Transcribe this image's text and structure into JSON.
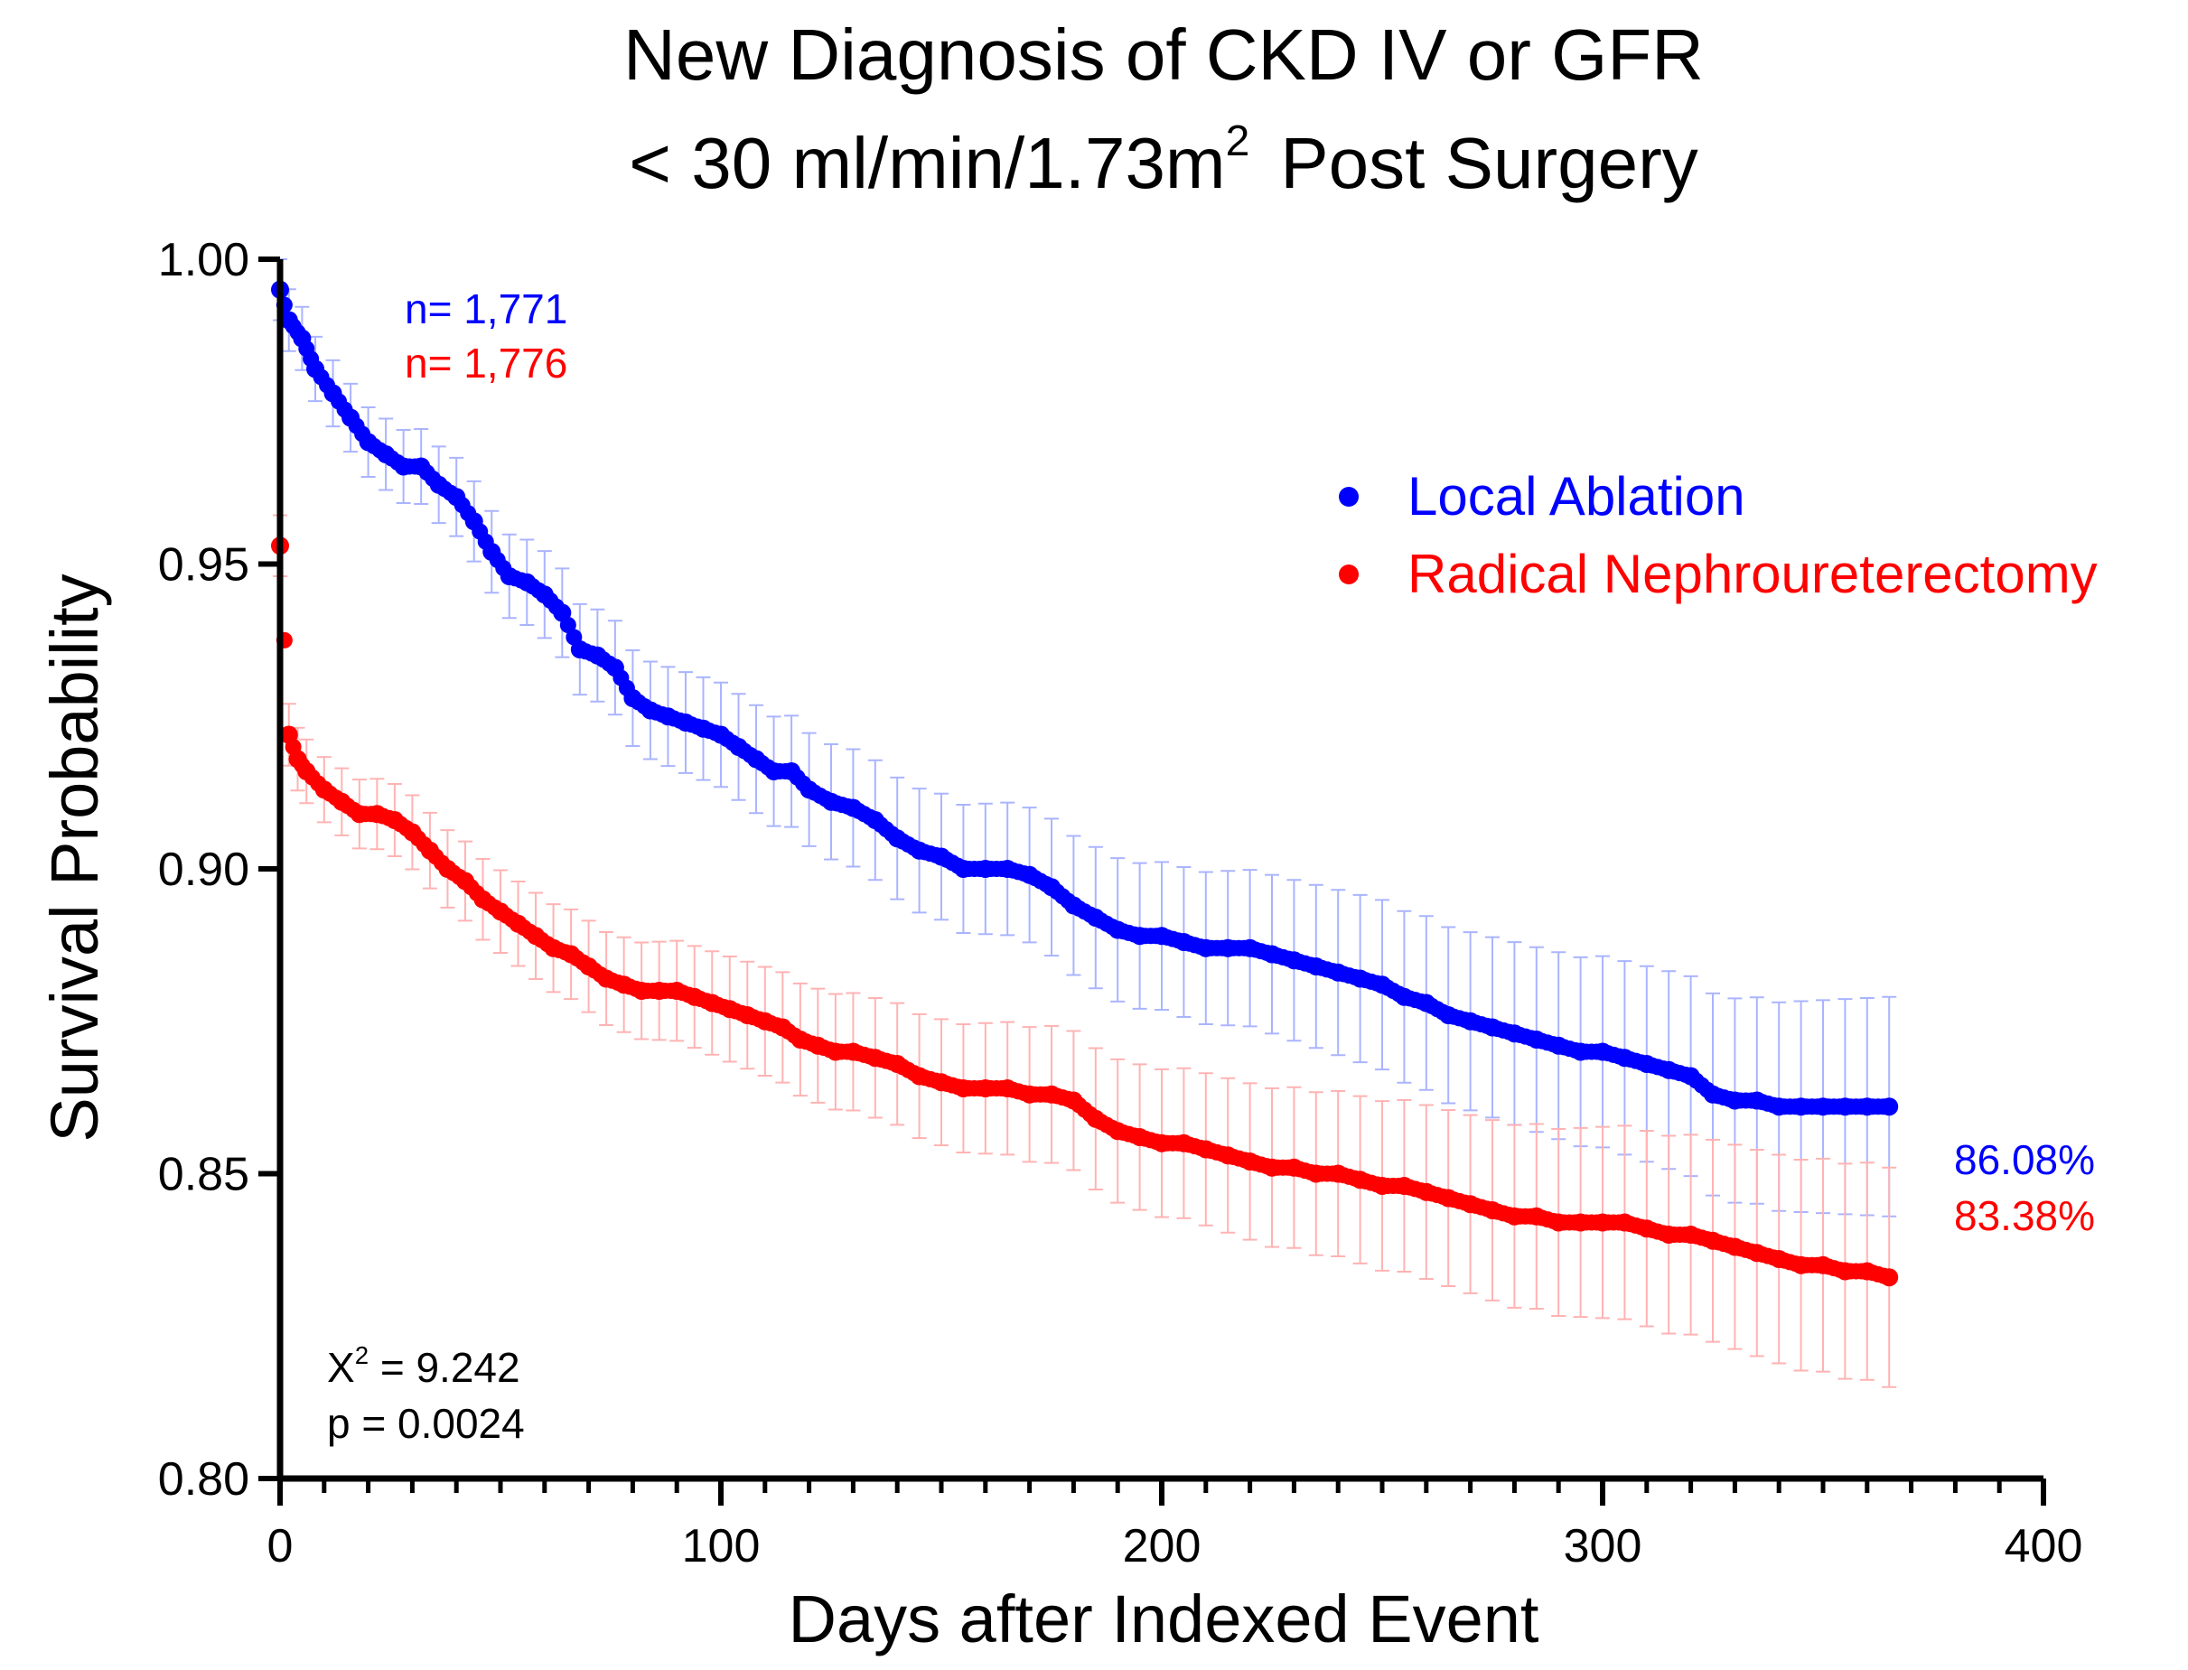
{
  "chart_data": {
    "type": "scatter",
    "title": {
      "line1": "New Diagnosis of CKD IV or GFR",
      "line2_prefix": "< 30 ml/min/1.73m",
      "line2_sup": "2",
      "line2_suffix": "Post Surgery"
    },
    "xlabel": "Days after Indexed Event",
    "ylabel": "Survival Probability",
    "xlim": [
      0,
      400
    ],
    "ylim": [
      0.8,
      1.0
    ],
    "x_ticks": [
      0,
      100,
      200,
      300,
      400
    ],
    "x_tick_labels": [
      "0",
      "100",
      "200",
      "300",
      "400"
    ],
    "y_ticks": [
      0.8,
      0.85,
      0.9,
      0.95,
      1.0
    ],
    "y_tick_labels": [
      "0.80",
      "0.85",
      "0.90",
      "0.95",
      "1.00"
    ],
    "grid": false,
    "legend_position": "top-right",
    "series": [
      {
        "name": "Local Ablation",
        "color": "#0000ff",
        "error_color": "#aab4ff",
        "n_label": "n= 1,771",
        "final_label": "86.08%",
        "x": [
          0,
          2,
          5,
          8,
          12,
          16,
          20,
          24,
          28,
          32,
          36,
          40,
          44,
          48,
          52,
          56,
          60,
          64,
          68,
          72,
          76,
          80,
          84,
          88,
          92,
          96,
          100,
          104,
          108,
          112,
          116,
          120,
          125,
          130,
          135,
          140,
          145,
          150,
          155,
          160,
          165,
          170,
          175,
          180,
          185,
          190,
          195,
          200,
          205,
          210,
          215,
          220,
          225,
          230,
          235,
          240,
          245,
          250,
          255,
          260,
          265,
          270,
          275,
          280,
          285,
          290,
          295,
          300,
          305,
          310,
          315,
          320,
          325,
          330,
          335,
          340,
          345,
          350,
          355,
          360,
          365
        ],
        "y": [
          0.995,
          0.99,
          0.987,
          0.982,
          0.978,
          0.974,
          0.97,
          0.968,
          0.966,
          0.966,
          0.963,
          0.961,
          0.957,
          0.952,
          0.948,
          0.947,
          0.945,
          0.942,
          0.936,
          0.935,
          0.933,
          0.928,
          0.926,
          0.925,
          0.924,
          0.923,
          0.922,
          0.92,
          0.918,
          0.916,
          0.916,
          0.913,
          0.911,
          0.91,
          0.908,
          0.905,
          0.903,
          0.902,
          0.9,
          0.9,
          0.9,
          0.899,
          0.897,
          0.894,
          0.892,
          0.89,
          0.889,
          0.889,
          0.888,
          0.887,
          0.887,
          0.887,
          0.886,
          0.885,
          0.884,
          0.883,
          0.882,
          0.881,
          0.879,
          0.878,
          0.876,
          0.875,
          0.874,
          0.873,
          0.872,
          0.871,
          0.87,
          0.87,
          0.869,
          0.868,
          0.867,
          0.866,
          0.863,
          0.862,
          0.862,
          0.861,
          0.861,
          0.861,
          0.861,
          0.861,
          0.861
        ]
      },
      {
        "name": "Radical Nephroureterectomy",
        "color": "#ff0000",
        "error_color": "#ffb3b3",
        "n_label": "n= 1,776",
        "final_label": "83.38%",
        "x": [
          0,
          2,
          4,
          6,
          10,
          14,
          18,
          22,
          26,
          30,
          34,
          38,
          42,
          46,
          50,
          54,
          58,
          62,
          66,
          70,
          74,
          78,
          82,
          86,
          90,
          94,
          98,
          102,
          106,
          110,
          114,
          118,
          122,
          126,
          130,
          135,
          140,
          145,
          150,
          155,
          160,
          165,
          170,
          175,
          180,
          185,
          190,
          195,
          200,
          205,
          210,
          215,
          220,
          225,
          230,
          235,
          240,
          245,
          250,
          255,
          260,
          265,
          270,
          275,
          280,
          285,
          290,
          295,
          300,
          305,
          310,
          315,
          320,
          325,
          330,
          335,
          340,
          345,
          350,
          355,
          360,
          365
        ],
        "y": [
          0.953,
          0.922,
          0.918,
          0.916,
          0.913,
          0.911,
          0.909,
          0.909,
          0.908,
          0.906,
          0.903,
          0.9,
          0.898,
          0.895,
          0.893,
          0.891,
          0.889,
          0.887,
          0.886,
          0.884,
          0.882,
          0.881,
          0.88,
          0.88,
          0.88,
          0.879,
          0.878,
          0.877,
          0.876,
          0.875,
          0.874,
          0.872,
          0.871,
          0.87,
          0.87,
          0.869,
          0.868,
          0.866,
          0.865,
          0.864,
          0.864,
          0.864,
          0.863,
          0.863,
          0.862,
          0.859,
          0.857,
          0.856,
          0.855,
          0.855,
          0.854,
          0.853,
          0.852,
          0.851,
          0.851,
          0.85,
          0.85,
          0.849,
          0.848,
          0.848,
          0.847,
          0.846,
          0.845,
          0.844,
          0.843,
          0.843,
          0.842,
          0.842,
          0.842,
          0.842,
          0.841,
          0.84,
          0.84,
          0.839,
          0.838,
          0.837,
          0.836,
          0.835,
          0.835,
          0.834,
          0.834,
          0.833
        ]
      }
    ],
    "annotations": {
      "chi_prefix": "X",
      "chi_sup": "2",
      "chi_value": " = 9.242",
      "p_value": "p = 0.0024"
    }
  }
}
